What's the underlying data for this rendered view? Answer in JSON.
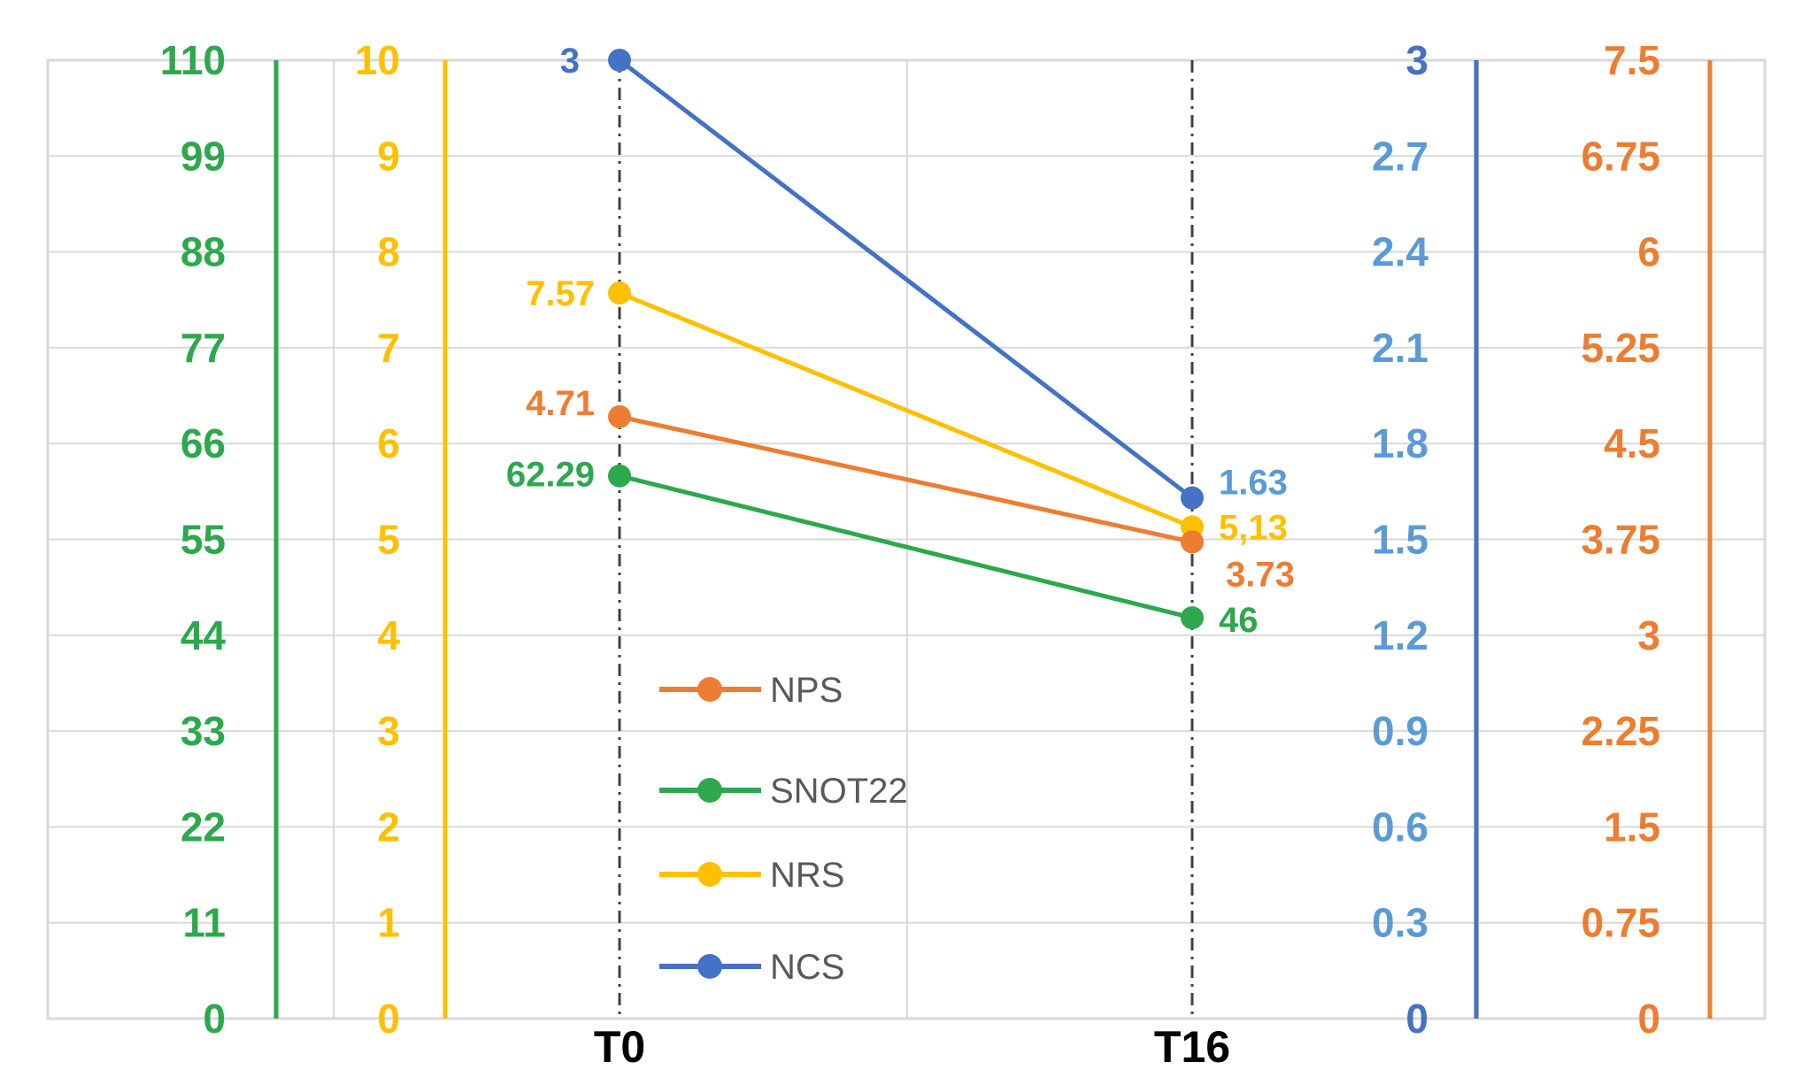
{
  "chart_data": {
    "type": "line",
    "categories": [
      "T0",
      "T16"
    ],
    "series": [
      {
        "name": "NPS",
        "values": [
          4.71,
          3.73
        ],
        "color": "#ED7D31",
        "labels": [
          "4.71",
          "3.73"
        ],
        "axis": "nps"
      },
      {
        "name": "SNOT22",
        "values": [
          62.29,
          46
        ],
        "color": "#2DA84D",
        "labels": [
          "62.29",
          "46"
        ],
        "axis": "snot22"
      },
      {
        "name": "NRS",
        "values": [
          7.57,
          5.13
        ],
        "color": "#FFC000",
        "labels": [
          "7.57",
          "5,13"
        ],
        "axis": "nrs"
      },
      {
        "name": "NCS",
        "values": [
          3,
          1.63
        ],
        "color": "#4472C4",
        "labels": [
          "3",
          "1.63"
        ],
        "axis": "ncs"
      }
    ],
    "axes": {
      "snot22": {
        "min": 0,
        "max": 110,
        "ticks": [
          "0",
          "11",
          "22",
          "33",
          "44",
          "55",
          "66",
          "77",
          "88",
          "99",
          "110"
        ],
        "color": "#2DA84D",
        "side": "left"
      },
      "nrs": {
        "min": 0,
        "max": 10,
        "ticks": [
          "0",
          "1",
          "2",
          "3",
          "4",
          "5",
          "6",
          "7",
          "8",
          "9",
          "10"
        ],
        "color": "#FFC000",
        "side": "left"
      },
      "ncs": {
        "min": 0,
        "max": 3,
        "ticks": [
          "0",
          "0.3",
          "0.6",
          "0.9",
          "1.2",
          "1.5",
          "1.8",
          "2.1",
          "2.4",
          "2.7",
          "3"
        ],
        "color": "#5B9BD5",
        "end_color": "#4472C4",
        "side": "right"
      },
      "nps": {
        "min": 0,
        "max": 7.5,
        "ticks": [
          "0",
          "0.75",
          "1.5",
          "2.25",
          "3",
          "3.75",
          "4.5",
          "5.25",
          "6",
          "6.75",
          "7.5"
        ],
        "color": "#ED7D31",
        "side": "right"
      }
    },
    "legend": {
      "placement": "center-left",
      "order": [
        "NPS",
        "SNOT22",
        "NRS",
        "NCS"
      ]
    },
    "grid": true
  }
}
